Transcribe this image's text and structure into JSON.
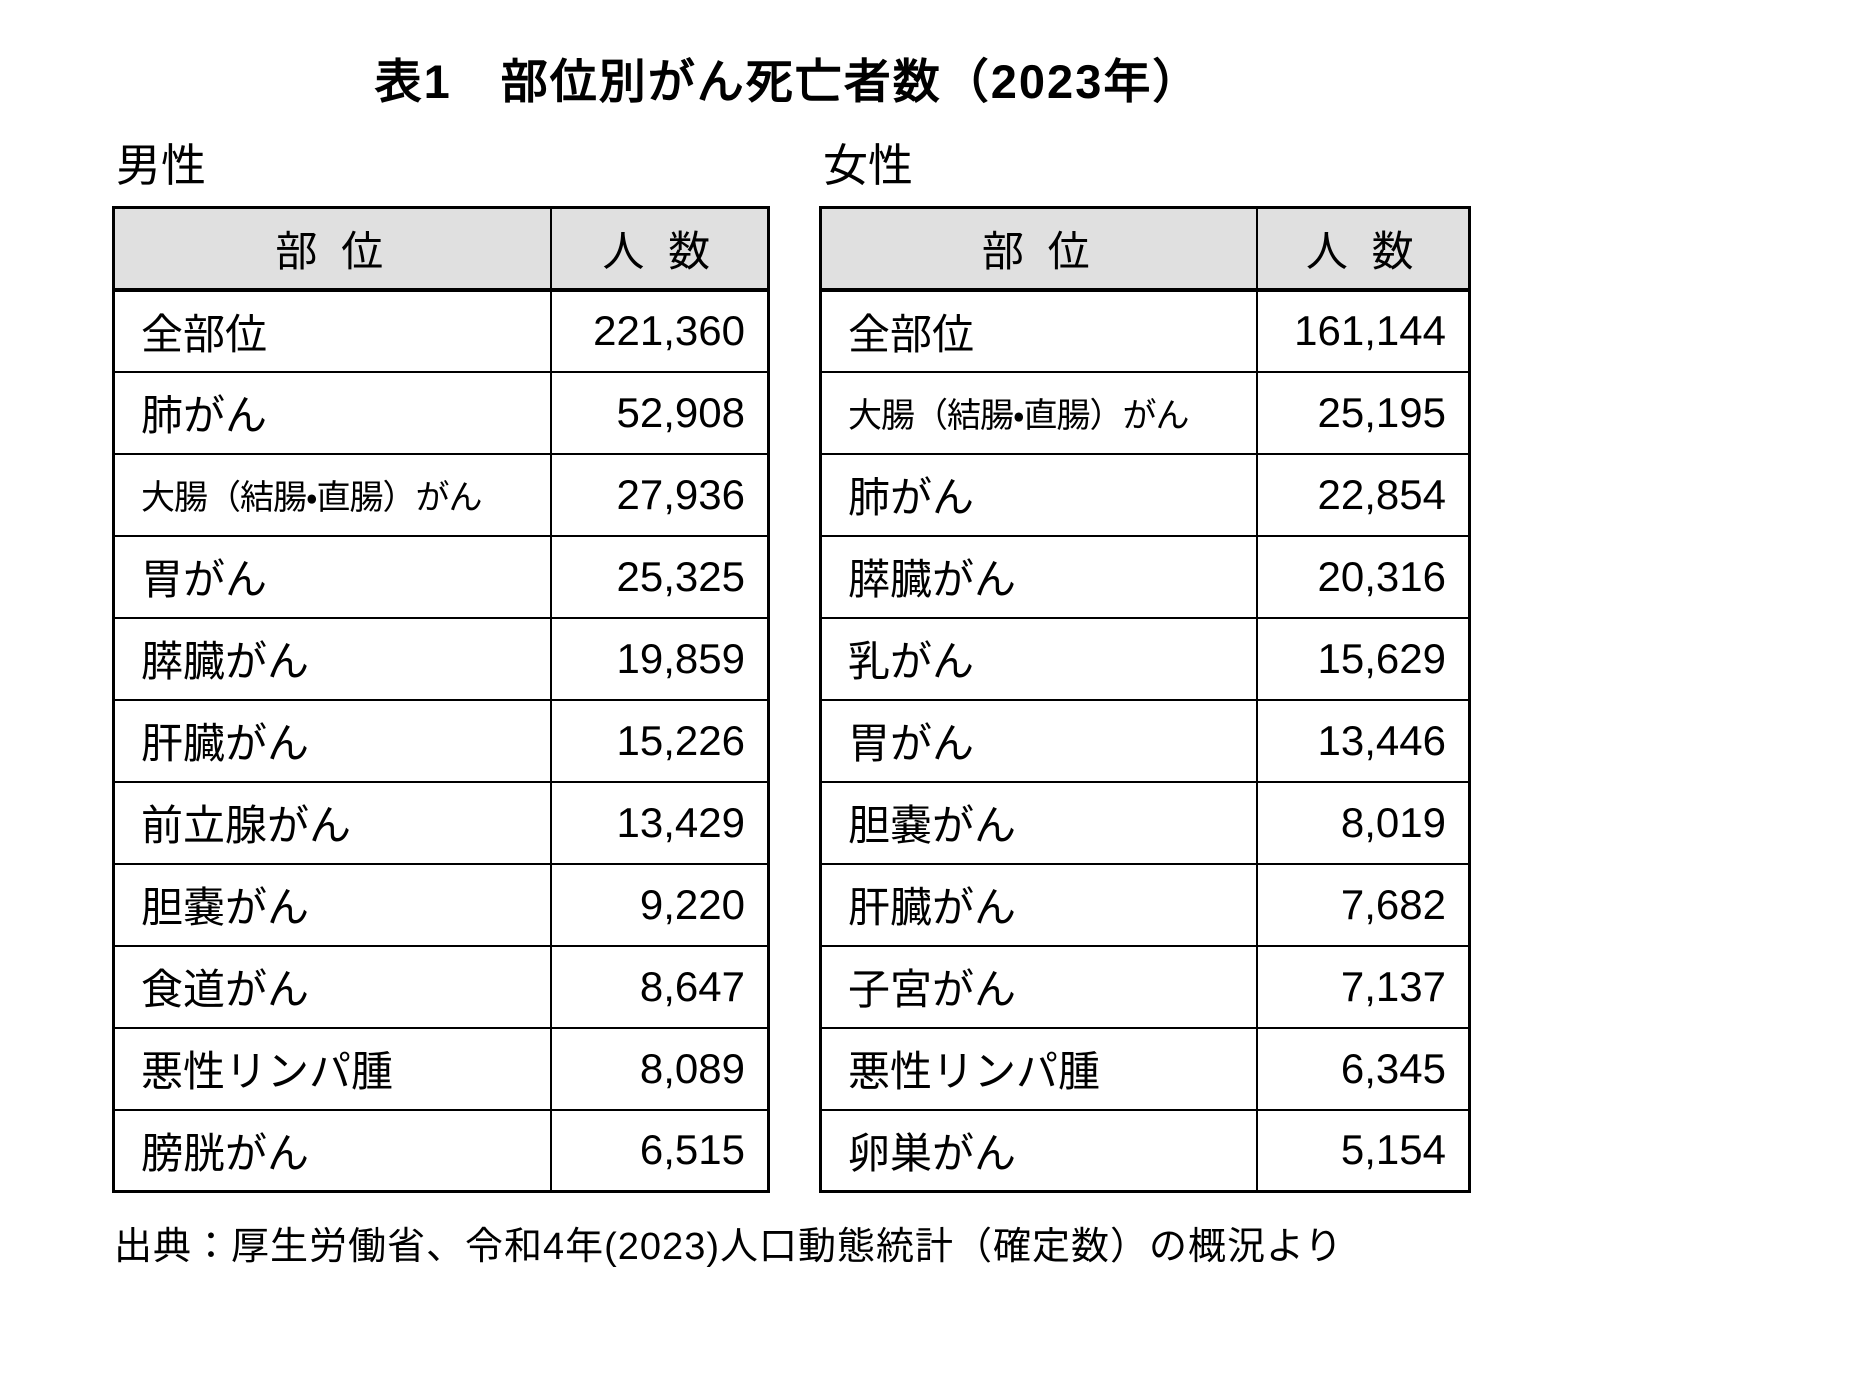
{
  "title": "表1　部位別がん死亡者数（2023年）",
  "source": "出典：厚生労働省、令和4年(2023)人口動態統計（確定数）の概況より",
  "colors": {
    "background": "#ffffff",
    "header_bg": "#e0e0e0",
    "border": "#000000",
    "text": "#000000"
  },
  "tables": [
    {
      "gender": "男性",
      "headers": {
        "site": "部 位",
        "count": "人 数"
      },
      "rows": [
        {
          "site": "全部位",
          "count": "221,360"
        },
        {
          "site": "肺がん",
          "count": "52,908"
        },
        {
          "site": "大腸（結腸・直腸）がん",
          "count": "27,936"
        },
        {
          "site": "胃がん",
          "count": "25,325"
        },
        {
          "site": "膵臓がん",
          "count": "19,859"
        },
        {
          "site": "肝臓がん",
          "count": "15,226"
        },
        {
          "site": "前立腺がん",
          "count": "13,429"
        },
        {
          "site": "胆嚢がん",
          "count": "9,220"
        },
        {
          "site": "食道がん",
          "count": "8,647"
        },
        {
          "site": "悪性リンパ腫",
          "count": "8,089"
        },
        {
          "site": "膀胱がん",
          "count": "6,515"
        }
      ]
    },
    {
      "gender": "女性",
      "headers": {
        "site": "部 位",
        "count": "人 数"
      },
      "rows": [
        {
          "site": "全部位",
          "count": "161,144"
        },
        {
          "site": "大腸（結腸・直腸）がん",
          "count": "25,195"
        },
        {
          "site": "肺がん",
          "count": "22,854"
        },
        {
          "site": "膵臓がん",
          "count": "20,316"
        },
        {
          "site": "乳がん",
          "count": "15,629"
        },
        {
          "site": "胃がん",
          "count": "13,446"
        },
        {
          "site": "胆嚢がん",
          "count": "8,019"
        },
        {
          "site": "肝臓がん",
          "count": "7,682"
        },
        {
          "site": "子宮がん",
          "count": "7,137"
        },
        {
          "site": "悪性リンパ腫",
          "count": "6,345"
        },
        {
          "site": "卵巣がん",
          "count": "5,154"
        }
      ]
    }
  ]
}
